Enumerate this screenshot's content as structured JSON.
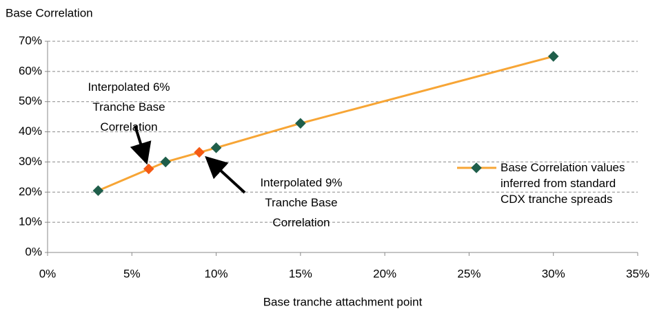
{
  "chart_data": {
    "type": "line",
    "y_axis_title": "Base Correlation",
    "x_axis_title": "Base tranche attachment point",
    "xlim": [
      0,
      35
    ],
    "xticks": [
      {
        "value": 0,
        "label": "0%"
      },
      {
        "value": 5,
        "label": "5%"
      },
      {
        "value": 10,
        "label": "10%"
      },
      {
        "value": 15,
        "label": "15%"
      },
      {
        "value": 20,
        "label": "20%"
      },
      {
        "value": 25,
        "label": "25%"
      },
      {
        "value": 30,
        "label": "30%"
      },
      {
        "value": 35,
        "label": "35%"
      }
    ],
    "ylim": [
      0,
      70
    ],
    "yticks": [
      {
        "value": 0,
        "label": "0%"
      },
      {
        "value": 10,
        "label": "10%"
      },
      {
        "value": 20,
        "label": "20%"
      },
      {
        "value": 30,
        "label": "30%"
      },
      {
        "value": 40,
        "label": "40%"
      },
      {
        "value": 50,
        "label": "50%"
      },
      {
        "value": 60,
        "label": "60%"
      },
      {
        "value": 70,
        "label": "70%"
      }
    ],
    "grid": true,
    "series": [
      {
        "name": "Base Correlation values inferred from standard CDX tranche spreads",
        "color": "#f7a535",
        "marker_color": "#1f5e4a",
        "line": true,
        "x": [
          3,
          7,
          10,
          15,
          30
        ],
        "values": [
          20.5,
          30,
          34.7,
          42.8,
          65
        ]
      },
      {
        "color": "#f55a14",
        "line": false,
        "x": [
          6,
          9
        ],
        "values": [
          27.7,
          33.2
        ]
      }
    ],
    "annotations": [
      {
        "lines": [
          "Interpolated 6%",
          "Tranche Base",
          "Correlation"
        ]
      },
      {
        "lines": [
          "Interpolated 9%",
          "Tranche Base",
          "Correlation"
        ]
      }
    ]
  }
}
